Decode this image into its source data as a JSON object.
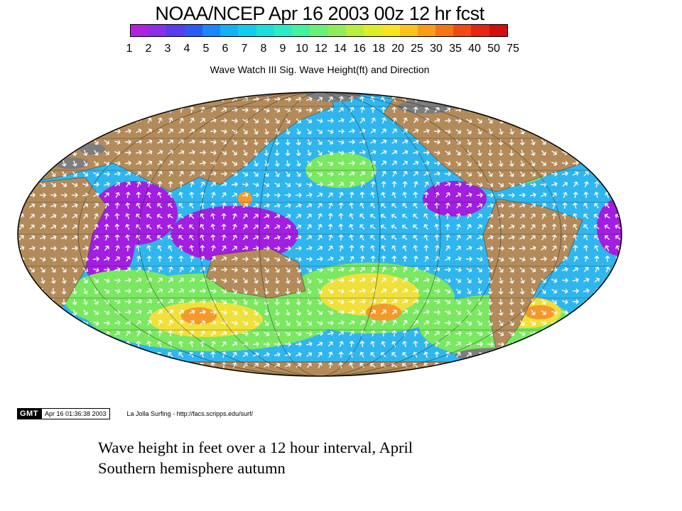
{
  "header": {
    "title": "NOAA/NCEP Apr 16 2003 00z 12 hr fcst",
    "colorbar_label": "Wave Watch III Sig. Wave Height(ft) and Direction",
    "colorbar_ticks": [
      "1",
      "2",
      "3",
      "4",
      "5",
      "6",
      "7",
      "8",
      "9",
      "10",
      "12",
      "14",
      "16",
      "18",
      "20",
      "25",
      "30",
      "35",
      "40",
      "50",
      "75"
    ],
    "colorbar_colors": [
      "#b022e0",
      "#8a2ee8",
      "#5a3cf0",
      "#2b5af6",
      "#1a88fa",
      "#13b0f6",
      "#12ccee",
      "#1ae0dc",
      "#2cecc4",
      "#44f2a0",
      "#68f07a",
      "#90ec58",
      "#b8ee3e",
      "#dcee2a",
      "#f6e41e",
      "#fbc21a",
      "#f99c18",
      "#f77416",
      "#f24a14",
      "#e82412",
      "#d20e10"
    ]
  },
  "map": {
    "colors": {
      "land": "#b38b5a",
      "ice": "#7d7d7d",
      "calm_sea": "#a21ee0",
      "moderate_sea": "#30b6ee",
      "rough_sea": "#7ae860",
      "high_sea": "#f0e03c",
      "very_high_sea": "#f49a2c",
      "arrows": "#ffffff",
      "grid": "#222222"
    }
  },
  "footer": {
    "logo": "GMT",
    "timestamp": "Apr 16 01:36:38 2003",
    "credit": "La Jolla Surfing - http://facs.scripps.edu/surf/"
  },
  "caption": {
    "line1": "Wave height in feet over a 12 hour interval, April",
    "line2": "Southern hemisphere autumn"
  }
}
